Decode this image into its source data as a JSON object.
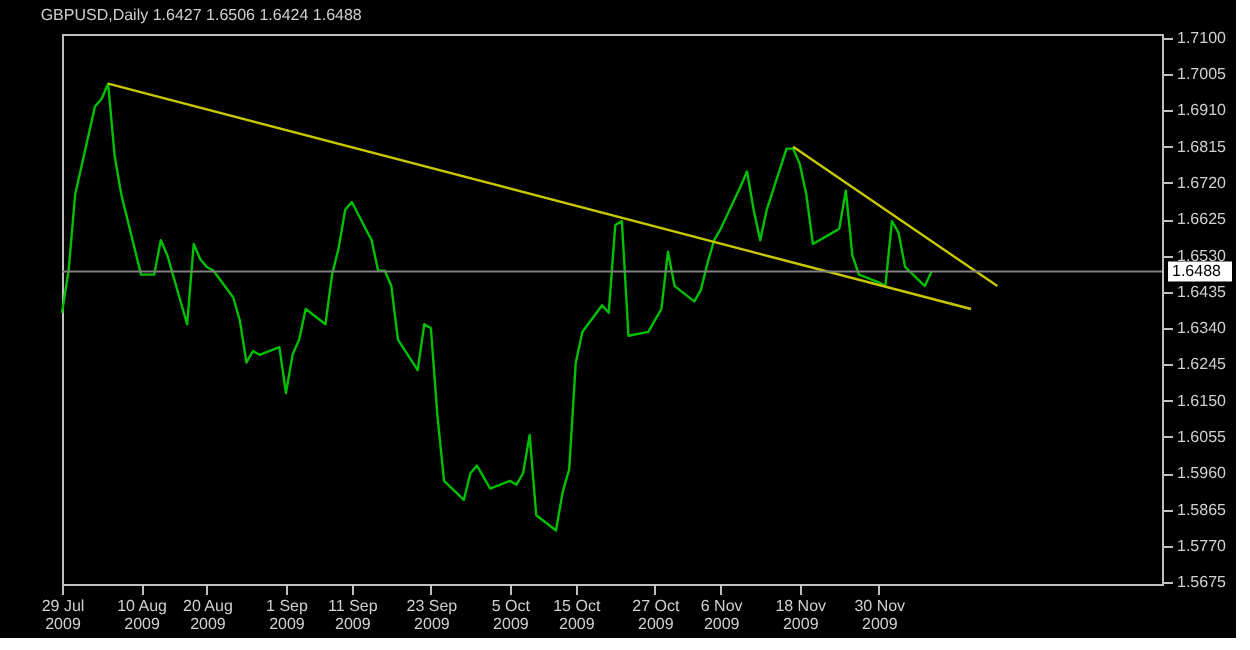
{
  "chart_data": {
    "type": "line",
    "title": "GBPUSD,Daily  1.6427 1.6506 1.6424 1.6488",
    "xlim": [
      "2009-07-29",
      "2010-01-12"
    ],
    "xticks": [
      {
        "value": "2009-07-29",
        "label": "29 Jul 2009"
      },
      {
        "value": "2009-08-10",
        "label": "10 Aug 2009"
      },
      {
        "value": "2009-08-20",
        "label": "20 Aug 2009"
      },
      {
        "value": "2009-09-01",
        "label": "1 Sep 2009"
      },
      {
        "value": "2009-09-11",
        "label": "11 Sep 2009"
      },
      {
        "value": "2009-09-23",
        "label": "23 Sep 2009"
      },
      {
        "value": "2009-10-05",
        "label": "5 Oct 2009"
      },
      {
        "value": "2009-10-15",
        "label": "15 Oct 2009"
      },
      {
        "value": "2009-10-27",
        "label": "27 Oct 2009"
      },
      {
        "value": "2009-11-06",
        "label": "6 Nov 2009"
      },
      {
        "value": "2009-11-18",
        "label": "18 Nov 2009"
      },
      {
        "value": "2009-11-30",
        "label": "30 Nov 2009"
      }
    ],
    "ylim": [
      1.567,
      1.711
    ],
    "yticks": [
      {
        "value": 1.71,
        "label": "1.7100"
      },
      {
        "value": 1.7005,
        "label": "1.7005"
      },
      {
        "value": 1.691,
        "label": "1.6910"
      },
      {
        "value": 1.6815,
        "label": "1.6815"
      },
      {
        "value": 1.672,
        "label": "1.6720"
      },
      {
        "value": 1.6625,
        "label": "1.6625"
      },
      {
        "value": 1.653,
        "label": "1.6530"
      },
      {
        "value": 1.6435,
        "label": "1.6435"
      },
      {
        "value": 1.634,
        "label": "1.6340"
      },
      {
        "value": 1.6245,
        "label": "1.6245"
      },
      {
        "value": 1.615,
        "label": "1.6150"
      },
      {
        "value": 1.6055,
        "label": "1.6055"
      },
      {
        "value": 1.596,
        "label": "1.5960"
      },
      {
        "value": 1.5865,
        "label": "1.5865"
      },
      {
        "value": 1.577,
        "label": "1.5770"
      },
      {
        "value": 1.5675,
        "label": "1.5675"
      }
    ],
    "grid": false,
    "marker": "none",
    "line_style": "solid",
    "ref_lines": [
      {
        "axis": "y",
        "value": 1.6488,
        "label": "1.6488",
        "color": "#808080"
      }
    ],
    "series": [
      {
        "color": "#00c000",
        "x": [
          "2009-07-29",
          "2009-07-30",
          "2009-07-31",
          "2009-08-03",
          "2009-08-04",
          "2009-08-05",
          "2009-08-06",
          "2009-08-07",
          "2009-08-10",
          "2009-08-11",
          "2009-08-12",
          "2009-08-13",
          "2009-08-14",
          "2009-08-17",
          "2009-08-18",
          "2009-08-19",
          "2009-08-20",
          "2009-08-21",
          "2009-08-24",
          "2009-08-25",
          "2009-08-26",
          "2009-08-27",
          "2009-08-28",
          "2009-08-31",
          "2009-09-01",
          "2009-09-02",
          "2009-09-03",
          "2009-09-04",
          "2009-09-07",
          "2009-09-08",
          "2009-09-09",
          "2009-09-10",
          "2009-09-11",
          "2009-09-14",
          "2009-09-15",
          "2009-09-16",
          "2009-09-17",
          "2009-09-18",
          "2009-09-21",
          "2009-09-22",
          "2009-09-23",
          "2009-09-24",
          "2009-09-25",
          "2009-09-28",
          "2009-09-29",
          "2009-09-30",
          "2009-10-01",
          "2009-10-02",
          "2009-10-05",
          "2009-10-06",
          "2009-10-07",
          "2009-10-08",
          "2009-10-09",
          "2009-10-12",
          "2009-10-13",
          "2009-10-14",
          "2009-10-15",
          "2009-10-16",
          "2009-10-19",
          "2009-10-20",
          "2009-10-21",
          "2009-10-22",
          "2009-10-23",
          "2009-10-26",
          "2009-10-27",
          "2009-10-28",
          "2009-10-29",
          "2009-10-30",
          "2009-11-02",
          "2009-11-03",
          "2009-11-04",
          "2009-11-05",
          "2009-11-06",
          "2009-11-09",
          "2009-11-10",
          "2009-11-11",
          "2009-11-12",
          "2009-11-13",
          "2009-11-16",
          "2009-11-17",
          "2009-11-18",
          "2009-11-19",
          "2009-11-20",
          "2009-11-23",
          "2009-11-24",
          "2009-11-25",
          "2009-11-26",
          "2009-11-27",
          "2009-11-30",
          "2009-12-01",
          "2009-12-02",
          "2009-12-03",
          "2009-12-04",
          "2009-12-07",
          "2009-12-08"
        ],
        "values": [
          1.638,
          1.649,
          1.669,
          1.692,
          1.694,
          1.698,
          1.679,
          1.669,
          1.648,
          1.648,
          1.648,
          1.657,
          1.653,
          1.635,
          1.656,
          1.652,
          1.65,
          1.649,
          1.642,
          1.636,
          1.625,
          1.628,
          1.627,
          1.629,
          1.617,
          1.627,
          1.631,
          1.639,
          1.635,
          1.648,
          1.655,
          1.665,
          1.667,
          1.657,
          1.649,
          1.649,
          1.645,
          1.631,
          1.623,
          1.635,
          1.634,
          1.611,
          1.594,
          1.589,
          1.596,
          1.598,
          1.595,
          1.592,
          1.594,
          1.593,
          1.596,
          1.606,
          1.585,
          1.581,
          1.591,
          1.597,
          1.625,
          1.633,
          1.64,
          1.638,
          1.661,
          1.662,
          1.632,
          1.633,
          1.636,
          1.639,
          1.654,
          1.645,
          1.641,
          1.644,
          1.651,
          1.657,
          1.66,
          1.671,
          1.675,
          1.665,
          1.657,
          1.665,
          1.681,
          1.681,
          1.677,
          1.669,
          1.656,
          1.659,
          1.66,
          1.67,
          1.653,
          1.648,
          1.646,
          1.645,
          1.662,
          1.659,
          1.65,
          1.645,
          1.6488
        ]
      },
      {
        "color": "#c8c800",
        "x": [
          "2009-08-05",
          "2009-12-14"
        ],
        "values": [
          1.698,
          1.639
        ]
      },
      {
        "color": "#c8c800",
        "x": [
          "2009-11-17",
          "2009-12-18"
        ],
        "values": [
          1.6815,
          1.645
        ]
      }
    ]
  }
}
